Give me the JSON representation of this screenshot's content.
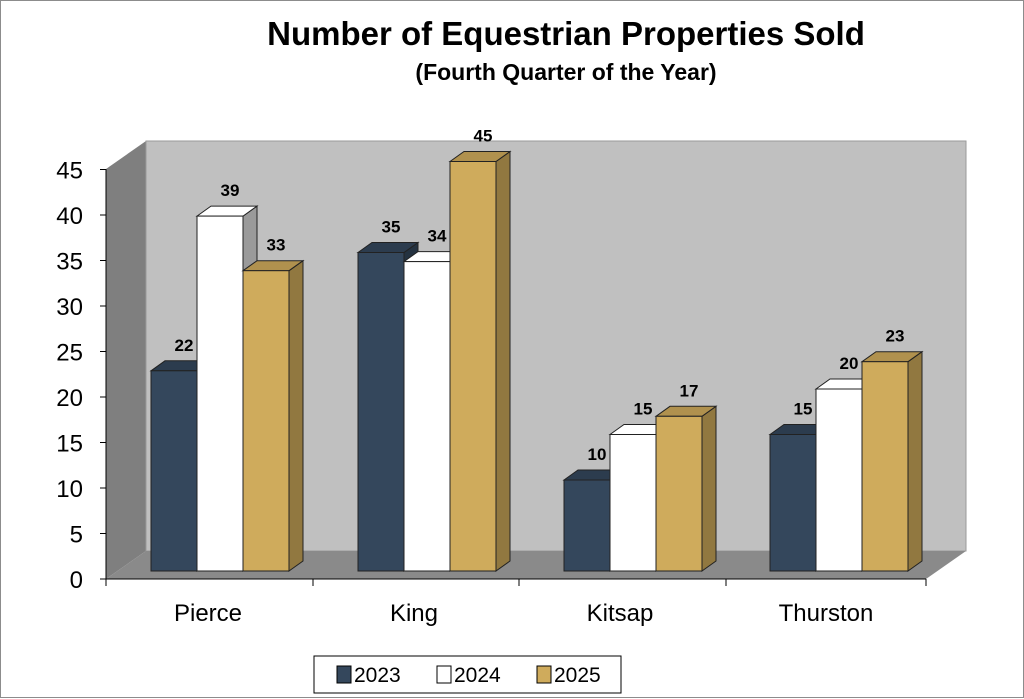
{
  "chart_data": {
    "type": "bar",
    "title": "Number of Equestrian Properties Sold",
    "subtitle": "(Fourth Quarter of the Year)",
    "categories": [
      "Pierce",
      "King",
      "Kitsap",
      "Thurston"
    ],
    "series": [
      {
        "name": "2023",
        "values": [
          22,
          35,
          10,
          15
        ],
        "color": "#34475c"
      },
      {
        "name": "2024",
        "values": [
          39,
          34,
          15,
          20
        ],
        "color": "#ffffff"
      },
      {
        "name": "2025",
        "values": [
          33,
          45,
          17,
          23
        ],
        "color": "#cfab5c"
      }
    ],
    "ylim": [
      0,
      45
    ],
    "yticks": [
      "0",
      "5",
      "10",
      "15",
      "20",
      "25",
      "30",
      "35",
      "40",
      "45"
    ],
    "xlabel": "",
    "ylabel": "",
    "legend_position": "bottom",
    "style": "3d-clustered-column",
    "grid": false
  }
}
